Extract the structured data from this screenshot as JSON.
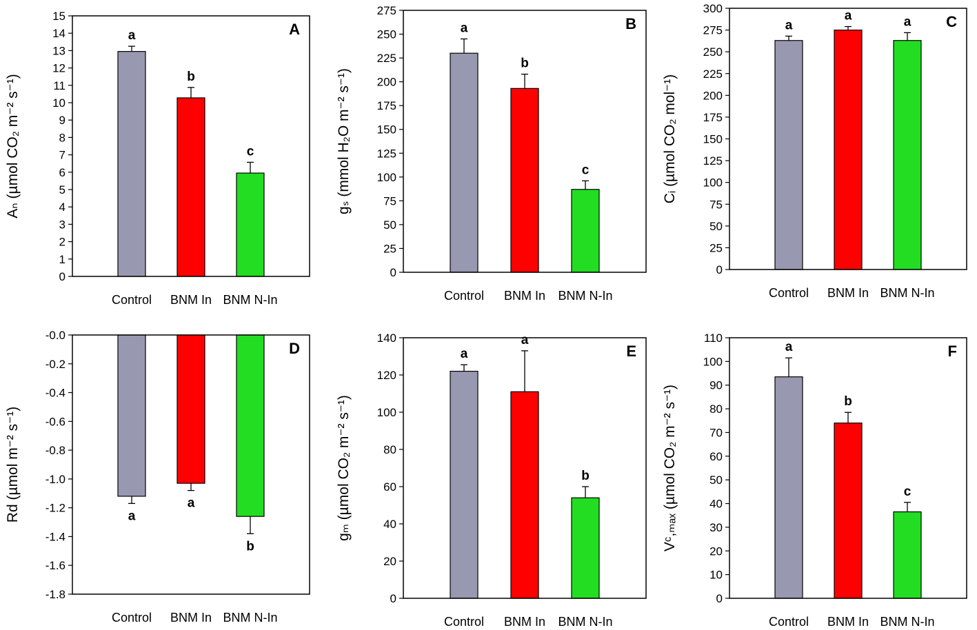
{
  "chart_data": [
    {
      "type": "bar",
      "panel_label": "A",
      "categories": [
        "Control",
        "BNM In",
        "BNM N-In"
      ],
      "values": [
        12.95,
        10.28,
        5.95
      ],
      "errors": [
        0.3,
        0.6,
        0.62
      ],
      "significance": [
        "a",
        "b",
        "c"
      ],
      "colors": [
        "#9898b0",
        "#ff0000",
        "#22dd22"
      ],
      "ylim": [
        0,
        15
      ],
      "ytick_step": 1,
      "ylabel": "Aₙ (µmol CO₂ m⁻² s⁻¹)"
    },
    {
      "type": "bar",
      "panel_label": "B",
      "categories": [
        "Control",
        "BNM In",
        "BNM N-In"
      ],
      "values": [
        230,
        193,
        87
      ],
      "errors": [
        15,
        15,
        9
      ],
      "significance": [
        "a",
        "b",
        "c"
      ],
      "colors": [
        "#9898b0",
        "#ff0000",
        "#22dd22"
      ],
      "ylim": [
        0,
        275
      ],
      "ytick_step": 25,
      "ylabel": "gₛ (mmol H₂O m⁻² s⁻¹)"
    },
    {
      "type": "bar",
      "panel_label": "C",
      "categories": [
        "Control",
        "BNM In",
        "BNM N-In"
      ],
      "values": [
        263,
        275,
        263
      ],
      "errors": [
        5,
        4,
        9
      ],
      "significance": [
        "a",
        "a",
        "a"
      ],
      "colors": [
        "#9898b0",
        "#ff0000",
        "#22dd22"
      ],
      "ylim": [
        0,
        300
      ],
      "ytick_step": 25,
      "ylabel": "Cᵢ (µmol CO₂ mol⁻¹)"
    },
    {
      "type": "bar",
      "panel_label": "D",
      "categories": [
        "Control",
        "BNM In",
        "BNM N-In"
      ],
      "values": [
        -1.12,
        -1.03,
        -1.26
      ],
      "errors": [
        0.05,
        0.05,
        0.12
      ],
      "significance": [
        "a",
        "a",
        "b"
      ],
      "colors": [
        "#9898b0",
        "#ff0000",
        "#22dd22"
      ],
      "ylim": [
        -1.8,
        0
      ],
      "ytick_step": 0.2,
      "ylabel": "Rd (µmol m⁻² s⁻¹)"
    },
    {
      "type": "bar",
      "panel_label": "E",
      "categories": [
        "Control",
        "BNM In",
        "BNM N-In"
      ],
      "values": [
        122,
        111,
        54
      ],
      "errors": [
        3.5,
        22,
        6
      ],
      "significance": [
        "a",
        "a",
        "b"
      ],
      "colors": [
        "#9898b0",
        "#ff0000",
        "#22dd22"
      ],
      "ylim": [
        0,
        140
      ],
      "ytick_step": 20,
      "ylabel": "gₘ (µmol CO₂ m⁻² s⁻¹)"
    },
    {
      "type": "bar",
      "panel_label": "F",
      "categories": [
        "Control",
        "BNM In",
        "BNM N-In"
      ],
      "values": [
        93.5,
        74,
        36.5
      ],
      "errors": [
        8,
        4.5,
        4
      ],
      "significance": [
        "a",
        "b",
        "c"
      ],
      "colors": [
        "#9898b0",
        "#ff0000",
        "#22dd22"
      ],
      "ylim": [
        0,
        110
      ],
      "ytick_step": 10,
      "ylabel": "Vᶜ,ₘₐₓ (µmol CO₂ m⁻² s⁻¹)"
    }
  ]
}
